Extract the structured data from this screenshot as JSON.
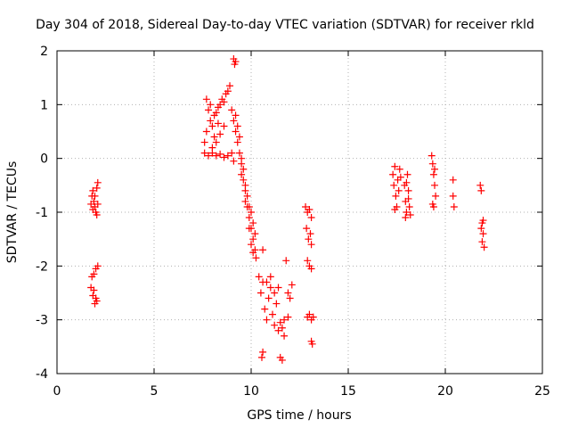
{
  "chart_data": {
    "type": "scatter",
    "title": "Day 304 of 2018, Sidereal Day-to-day VTEC variation (SDTVAR) for receiver rkld",
    "xlabel": "GPS time / hours",
    "ylabel": "SDTVAR / TECUs",
    "xlim": [
      0,
      25
    ],
    "ylim": [
      -4,
      2
    ],
    "xticks": [
      0,
      5,
      10,
      15,
      20,
      25
    ],
    "yticks": [
      -4,
      -3,
      -2,
      -1,
      0,
      1,
      2
    ],
    "xtick_labels": [
      "0",
      "5",
      "10",
      "15",
      "20",
      "25"
    ],
    "ytick_labels": [
      "-4",
      "-3",
      "-2",
      "-1",
      "0",
      "1",
      "2"
    ],
    "grid": true,
    "legend": "none",
    "marker": "+",
    "color": "#ff0000",
    "series": [
      {
        "points": [
          [
            1.75,
            -0.85
          ],
          [
            1.8,
            -0.7
          ],
          [
            1.85,
            -0.6
          ],
          [
            1.9,
            -0.8
          ],
          [
            1.95,
            -0.9
          ],
          [
            2.0,
            -1.0
          ],
          [
            2.05,
            -0.55
          ],
          [
            2.1,
            -0.45
          ],
          [
            2.05,
            -1.05
          ],
          [
            1.95,
            -0.7
          ],
          [
            1.85,
            -0.95
          ],
          [
            2.1,
            -0.85
          ],
          [
            1.75,
            -2.4
          ],
          [
            1.8,
            -2.2
          ],
          [
            1.85,
            -2.55
          ],
          [
            1.9,
            -2.15
          ],
          [
            1.95,
            -2.7
          ],
          [
            2.0,
            -2.05
          ],
          [
            2.05,
            -2.65
          ],
          [
            2.1,
            -2.0
          ],
          [
            2.0,
            -2.6
          ],
          [
            1.9,
            -2.45
          ],
          [
            7.6,
            0.3
          ],
          [
            7.7,
            0.5
          ],
          [
            7.8,
            0.9
          ],
          [
            7.9,
            0.7
          ],
          [
            8.0,
            0.6
          ],
          [
            8.1,
            0.4
          ],
          [
            8.2,
            0.85
          ],
          [
            8.3,
            0.95
          ],
          [
            8.4,
            1.0
          ],
          [
            8.5,
            1.1
          ],
          [
            8.6,
            1.05
          ],
          [
            8.7,
            1.2
          ],
          [
            8.8,
            1.25
          ],
          [
            8.9,
            1.35
          ],
          [
            8.6,
            0.6
          ],
          [
            8.4,
            0.45
          ],
          [
            8.2,
            0.3
          ],
          [
            8.0,
            0.2
          ],
          [
            7.6,
            0.1
          ],
          [
            7.8,
            0.05
          ],
          [
            8.0,
            0.1
          ],
          [
            8.2,
            0.05
          ],
          [
            8.4,
            0.08
          ],
          [
            8.6,
            0.02
          ],
          [
            8.8,
            0.05
          ],
          [
            9.0,
            0.1
          ],
          [
            9.1,
            -0.05
          ],
          [
            7.7,
            1.1
          ],
          [
            7.9,
            1.0
          ],
          [
            8.1,
            0.8
          ],
          [
            8.3,
            0.65
          ],
          [
            9.1,
            1.85
          ],
          [
            9.15,
            1.75
          ],
          [
            9.2,
            1.8
          ],
          [
            9.0,
            0.9
          ],
          [
            9.1,
            0.7
          ],
          [
            9.2,
            0.5
          ],
          [
            9.3,
            0.3
          ],
          [
            9.4,
            0.1
          ],
          [
            9.5,
            -0.1
          ],
          [
            9.6,
            -0.4
          ],
          [
            9.7,
            -0.6
          ],
          [
            9.8,
            -0.9
          ],
          [
            9.9,
            -1.1
          ],
          [
            10.0,
            -1.3
          ],
          [
            10.1,
            -1.5
          ],
          [
            10.2,
            -1.7
          ],
          [
            10.25,
            -1.85
          ],
          [
            9.2,
            0.8
          ],
          [
            9.3,
            0.6
          ],
          [
            9.4,
            0.4
          ],
          [
            9.5,
            0.0
          ],
          [
            9.6,
            -0.2
          ],
          [
            9.7,
            -0.5
          ],
          [
            9.8,
            -0.7
          ],
          [
            9.9,
            -0.9
          ],
          [
            10.0,
            -1.0
          ],
          [
            10.1,
            -1.2
          ],
          [
            10.2,
            -1.4
          ],
          [
            9.5,
            -0.3
          ],
          [
            9.7,
            -0.8
          ],
          [
            9.9,
            -1.3
          ],
          [
            10.0,
            -1.6
          ],
          [
            10.1,
            -1.75
          ],
          [
            10.6,
            -1.7
          ],
          [
            10.4,
            -2.2
          ],
          [
            10.5,
            -2.5
          ],
          [
            10.6,
            -2.3
          ],
          [
            10.7,
            -2.8
          ],
          [
            10.8,
            -3.0
          ],
          [
            10.9,
            -2.6
          ],
          [
            11.0,
            -2.4
          ],
          [
            11.1,
            -2.9
          ],
          [
            11.2,
            -3.1
          ],
          [
            11.3,
            -2.7
          ],
          [
            11.4,
            -3.2
          ],
          [
            11.5,
            -3.05
          ],
          [
            11.6,
            -3.15
          ],
          [
            11.7,
            -3.3
          ],
          [
            11.5,
            -3.7
          ],
          [
            11.6,
            -3.75
          ],
          [
            10.6,
            -3.6
          ],
          [
            10.55,
            -3.7
          ],
          [
            10.8,
            -2.3
          ],
          [
            11.0,
            -2.2
          ],
          [
            11.2,
            -2.5
          ],
          [
            11.4,
            -2.4
          ],
          [
            11.8,
            -1.9
          ],
          [
            11.9,
            -2.5
          ],
          [
            12.0,
            -2.6
          ],
          [
            12.1,
            -2.35
          ],
          [
            11.7,
            -3.0
          ],
          [
            11.9,
            -2.95
          ],
          [
            12.8,
            -0.9
          ],
          [
            12.9,
            -1.0
          ],
          [
            13.0,
            -0.95
          ],
          [
            13.1,
            -1.1
          ],
          [
            12.85,
            -1.3
          ],
          [
            12.95,
            -1.5
          ],
          [
            13.05,
            -1.4
          ],
          [
            13.1,
            -1.6
          ],
          [
            12.9,
            -1.9
          ],
          [
            13.0,
            -2.0
          ],
          [
            13.1,
            -2.05
          ],
          [
            12.9,
            -2.95
          ],
          [
            13.0,
            -2.9
          ],
          [
            13.1,
            -3.0
          ],
          [
            13.2,
            -2.95
          ],
          [
            13.1,
            -3.4
          ],
          [
            13.15,
            -3.45
          ],
          [
            17.3,
            -0.3
          ],
          [
            17.35,
            -0.5
          ],
          [
            17.4,
            -0.15
          ],
          [
            17.45,
            -0.7
          ],
          [
            17.5,
            -0.9
          ],
          [
            17.55,
            -0.4
          ],
          [
            17.6,
            -0.6
          ],
          [
            17.65,
            -0.2
          ],
          [
            17.4,
            -0.95
          ],
          [
            17.7,
            -0.35
          ],
          [
            17.9,
            -0.5
          ],
          [
            17.95,
            -0.8
          ],
          [
            18.0,
            -1.0
          ],
          [
            18.05,
            -0.3
          ],
          [
            18.1,
            -0.6
          ],
          [
            18.15,
            -0.9
          ],
          [
            18.2,
            -1.05
          ],
          [
            18.0,
            -0.45
          ],
          [
            18.1,
            -0.75
          ],
          [
            17.95,
            -1.1
          ],
          [
            19.3,
            0.05
          ],
          [
            19.35,
            -0.1
          ],
          [
            19.4,
            -0.3
          ],
          [
            19.45,
            -0.5
          ],
          [
            19.5,
            -0.7
          ],
          [
            19.35,
            -0.85
          ],
          [
            19.45,
            -0.2
          ],
          [
            19.4,
            -0.9
          ],
          [
            20.4,
            -0.4
          ],
          [
            20.4,
            -0.7
          ],
          [
            20.45,
            -0.9
          ],
          [
            21.8,
            -0.5
          ],
          [
            21.85,
            -0.6
          ],
          [
            21.9,
            -1.2
          ],
          [
            21.85,
            -1.3
          ],
          [
            21.95,
            -1.4
          ],
          [
            21.9,
            -1.55
          ],
          [
            22.0,
            -1.65
          ],
          [
            21.95,
            -1.15
          ]
        ]
      }
    ]
  }
}
